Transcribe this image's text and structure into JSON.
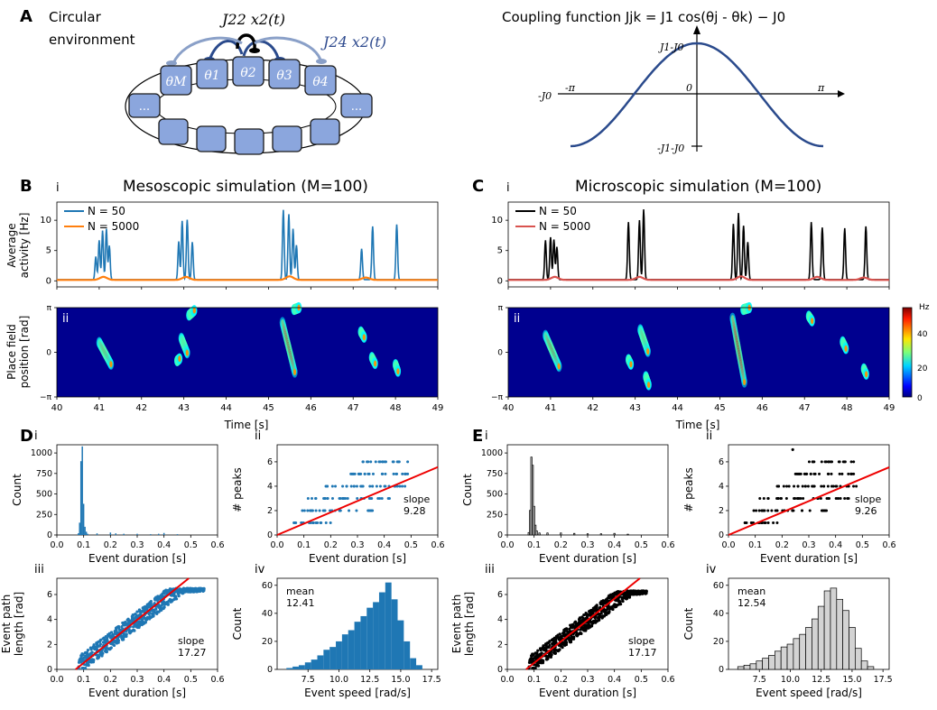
{
  "panel_letters": {
    "A": "A",
    "B": "B",
    "C": "C",
    "D": "D",
    "E": "E"
  },
  "sub_labels": {
    "i": "i",
    "ii": "ii",
    "iii": "iii",
    "iv": "iv"
  },
  "panelA": {
    "env_line1": "Circular",
    "env_line2": "environment",
    "j22_label": "J22 x2(t)",
    "j24_label": "J24 x2(t)",
    "theta_labels": [
      "θM",
      "θ1",
      "θ2",
      "θ3",
      "θ4"
    ],
    "ellipsis": "...",
    "coupling_title": "Coupling function  Jjk = J1 cos(θj - θk) − J0",
    "top_tick": "J1-J0",
    "bottom_tick": "-J1-J0",
    "left_tick": "-J0",
    "neg_pi": "-π",
    "pos_pi": "π",
    "zero": "0",
    "colors": {
      "box": "#8ba6dd",
      "box_border": "#1a1a1a",
      "curve": "#2a4a8c",
      "arrow_light": "#8aa0c8",
      "arrow_dark": "#2a4a8c",
      "j24_text": "#2e4a8e"
    }
  },
  "panelB": {
    "title": "Mesoscopic simulation (M=100)",
    "ylabel_top": [
      "Average",
      "activity [Hz]"
    ],
    "ylabel_bottom": [
      "Place field",
      "position [rad]"
    ],
    "legend": [
      "N = 50",
      "N = 5000"
    ],
    "colors": [
      "#1f77b4",
      "#ff7f0e"
    ],
    "xlabel": "Time [s]",
    "xticks": [
      "40",
      "41",
      "42",
      "43",
      "44",
      "45",
      "46",
      "47",
      "48",
      "49"
    ],
    "yticks_top": [
      "0",
      "5",
      "10"
    ],
    "yticks_bottom": [
      "−π",
      "0",
      "π"
    ]
  },
  "panelC": {
    "title": "Microscopic simulation (M=100)",
    "legend": [
      "N = 50",
      "N = 5000"
    ],
    "colors": [
      "#000000",
      "#d9534f"
    ],
    "xlabel": "Time [s]",
    "colorbar_unit": "Hz",
    "colorbar_ticks": [
      "0",
      "20",
      "40"
    ]
  },
  "chart_data": [
    {
      "type": "line",
      "panel": "B-i",
      "title": "Mesoscopic simulation (M=100)",
      "xlabel": "",
      "ylabel": "Average activity [Hz]",
      "xlim": [
        40,
        49
      ],
      "ylim": [
        -1,
        13
      ],
      "series": [
        {
          "name": "N = 50",
          "peaks": [
            [
              40.92,
              3.8
            ],
            [
              41.0,
              6.5
            ],
            [
              41.08,
              8.1
            ],
            [
              41.17,
              8.4
            ],
            [
              41.24,
              5.6
            ],
            [
              42.88,
              6.3
            ],
            [
              42.96,
              9.7
            ],
            [
              43.08,
              9.9
            ],
            [
              43.2,
              6.2
            ],
            [
              45.35,
              11.5
            ],
            [
              45.48,
              10.8
            ],
            [
              45.58,
              8.4
            ],
            [
              45.66,
              5.7
            ],
            [
              47.2,
              5.1
            ],
            [
              47.46,
              8.8
            ],
            [
              48.03,
              9.1
            ]
          ]
        },
        {
          "name": "N = 5000",
          "peaks": [
            [
              41.1,
              0.5
            ],
            [
              43.05,
              0.5
            ],
            [
              45.5,
              0.6
            ],
            [
              47.3,
              0.4
            ]
          ]
        }
      ]
    },
    {
      "type": "heatmap",
      "panel": "B-ii",
      "xlabel": "Time [s]",
      "ylabel": "Place field position [rad]",
      "xlim": [
        40,
        49
      ],
      "ylim": [
        -3.14,
        3.14
      ],
      "color_range": [
        0,
        55
      ],
      "trajectories": [
        {
          "t0": 41.0,
          "t1": 41.28,
          "p0": 0.7,
          "p1": -0.85
        },
        {
          "t0": 42.84,
          "t1": 42.9,
          "p0": -0.6,
          "p1": -0.45
        },
        {
          "t0": 42.94,
          "t1": 43.08,
          "p0": 1.0,
          "p1": -0.05
        },
        {
          "t0": 43.12,
          "t1": 43.25,
          "p0": 2.6,
          "p1": 2.95
        },
        {
          "t0": 45.33,
          "t1": 45.62,
          "p0": 2.1,
          "p1": -1.4
        },
        {
          "t0": 45.6,
          "t1": 45.72,
          "p0": 3.0,
          "p1": 3.14
        },
        {
          "t0": 47.18,
          "t1": 47.26,
          "p0": 1.45,
          "p1": 1.05
        },
        {
          "t0": 47.44,
          "t1": 47.52,
          "p0": -0.35,
          "p1": -0.8
        },
        {
          "t0": 48.0,
          "t1": 48.06,
          "p0": -0.85,
          "p1": -1.35
        }
      ]
    },
    {
      "type": "line",
      "panel": "C-i",
      "title": "Microscopic simulation (M=100)",
      "xlabel": "",
      "ylabel": "",
      "xlim": [
        40,
        49
      ],
      "ylim": [
        -1,
        13
      ],
      "series": [
        {
          "name": "N = 50",
          "peaks": [
            [
              40.88,
              6.5
            ],
            [
              41.0,
              7.0
            ],
            [
              41.08,
              6.6
            ],
            [
              41.15,
              5.4
            ],
            [
              42.84,
              9.5
            ],
            [
              43.1,
              9.8
            ],
            [
              43.2,
              11.6
            ],
            [
              45.32,
              9.2
            ],
            [
              45.44,
              11.0
            ],
            [
              45.56,
              8.9
            ],
            [
              45.66,
              6.2
            ],
            [
              47.16,
              9.5
            ],
            [
              47.42,
              8.6
            ],
            [
              47.95,
              8.5
            ],
            [
              48.45,
              8.8
            ]
          ]
        },
        {
          "name": "N = 5000",
          "peaks": [
            [
              41.1,
              0.5
            ],
            [
              43.1,
              0.5
            ],
            [
              45.5,
              0.6
            ],
            [
              47.3,
              0.5
            ],
            [
              48.4,
              0.4
            ]
          ]
        }
      ]
    },
    {
      "type": "heatmap",
      "panel": "C-ii",
      "xlabel": "Time [s]",
      "ylabel": "",
      "xlim": [
        40,
        49
      ],
      "ylim": [
        -3.14,
        3.14
      ],
      "color_range": [
        0,
        55
      ],
      "trajectories": [
        {
          "t0": 40.88,
          "t1": 41.2,
          "p0": 1.2,
          "p1": -1.0
        },
        {
          "t0": 42.84,
          "t1": 42.9,
          "p0": -0.5,
          "p1": -0.85
        },
        {
          "t0": 43.12,
          "t1": 43.3,
          "p0": 1.6,
          "p1": 0.05
        },
        {
          "t0": 43.25,
          "t1": 43.32,
          "p0": -1.7,
          "p1": -2.3
        },
        {
          "t0": 45.3,
          "t1": 45.58,
          "p0": 2.4,
          "p1": -2.1
        },
        {
          "t0": 45.55,
          "t1": 45.7,
          "p0": 3.0,
          "p1": 3.14
        },
        {
          "t0": 47.1,
          "t1": 47.18,
          "p0": 2.55,
          "p1": 2.2
        },
        {
          "t0": 47.9,
          "t1": 47.98,
          "p0": 0.75,
          "p1": 0.25
        },
        {
          "t0": 48.4,
          "t1": 48.46,
          "p0": -1.15,
          "p1": -1.55
        }
      ]
    },
    {
      "type": "bar",
      "panel": "D-i",
      "xlabel": "Event duration [s]",
      "ylabel": "Count",
      "xlim": [
        0,
        0.6
      ],
      "ylim": [
        0,
        1100
      ],
      "xticks": [
        0,
        0.1,
        0.2,
        0.3,
        0.4,
        0.5,
        0.6
      ],
      "yticks": [
        0,
        250,
        500,
        750,
        1000
      ],
      "bins": [
        [
          0.08,
          20
        ],
        [
          0.085,
          150
        ],
        [
          0.09,
          900
        ],
        [
          0.095,
          1080
        ],
        [
          0.1,
          380
        ],
        [
          0.105,
          100
        ],
        [
          0.11,
          40
        ],
        [
          0.115,
          15
        ],
        [
          0.15,
          20
        ],
        [
          0.2,
          30
        ],
        [
          0.22,
          20
        ],
        [
          0.25,
          15
        ],
        [
          0.3,
          15
        ],
        [
          0.35,
          10
        ],
        [
          0.38,
          15
        ],
        [
          0.4,
          25
        ],
        [
          0.45,
          10
        ]
      ],
      "color": "#1f77b4"
    },
    {
      "type": "scatter",
      "panel": "D-ii",
      "xlabel": "Event duration [s]",
      "ylabel": "# peaks",
      "xlim": [
        0,
        0.6
      ],
      "ylim": [
        0,
        7.4
      ],
      "xticks": [
        0,
        0.1,
        0.2,
        0.3,
        0.4,
        0.5,
        0.6
      ],
      "yticks": [
        0,
        2,
        4,
        6
      ],
      "rows": [
        [
          1,
          0.05,
          0.22
        ],
        [
          2,
          0.08,
          0.36
        ],
        [
          3,
          0.1,
          0.43
        ],
        [
          4,
          0.18,
          0.48
        ],
        [
          5,
          0.27,
          0.52
        ],
        [
          6,
          0.32,
          0.5
        ]
      ],
      "fit_slope": 9.28,
      "annotation": "slope\n9.28",
      "color": "#1f77b4"
    },
    {
      "type": "scatter",
      "panel": "D-iii",
      "xlabel": "Event duration [s]",
      "ylabel": "Event path length [rad]",
      "xlim": [
        0,
        0.6
      ],
      "ylim": [
        0,
        7.3
      ],
      "xticks": [
        0,
        0.1,
        0.2,
        0.3,
        0.4,
        0.5,
        0.6
      ],
      "yticks": [
        0,
        2,
        4,
        6
      ],
      "cloud": {
        "x0": 0.08,
        "x1": 0.55,
        "y_at_x0": 0.5,
        "y_max": 6.2
      },
      "fit_slope": 17.27,
      "annotation": "slope\n17.27",
      "color": "#1f77b4"
    },
    {
      "type": "bar",
      "panel": "D-iv",
      "xlabel": "Event speed [rad/s]",
      "ylabel": "Count",
      "xlim": [
        5,
        18
      ],
      "ylim": [
        0,
        65
      ],
      "xticks": [
        7.5,
        10.0,
        12.5,
        15.0,
        17.5
      ],
      "yticks": [
        0,
        20,
        40,
        60
      ],
      "bins": [
        [
          6.0,
          1
        ],
        [
          6.5,
          2
        ],
        [
          7.0,
          3
        ],
        [
          7.5,
          5
        ],
        [
          8.0,
          7
        ],
        [
          8.5,
          10
        ],
        [
          9.0,
          14
        ],
        [
          9.5,
          16
        ],
        [
          10.0,
          20
        ],
        [
          10.5,
          25
        ],
        [
          11.0,
          28
        ],
        [
          11.5,
          34
        ],
        [
          12.0,
          38
        ],
        [
          12.5,
          44
        ],
        [
          13.0,
          48
        ],
        [
          13.5,
          55
        ],
        [
          14.0,
          62
        ],
        [
          14.5,
          50
        ],
        [
          15.0,
          35
        ],
        [
          15.5,
          20
        ],
        [
          16.0,
          8
        ],
        [
          16.5,
          3
        ]
      ],
      "mean": 12.41,
      "annotation": "mean\n12.41",
      "color": "#1f77b4"
    },
    {
      "type": "bar",
      "panel": "E-i",
      "xlabel": "Event duration [s]",
      "ylabel": "Count",
      "xlim": [
        0,
        0.6
      ],
      "ylim": [
        0,
        1100
      ],
      "xticks": [
        0,
        0.1,
        0.2,
        0.3,
        0.4,
        0.5,
        0.6
      ],
      "yticks": [
        0,
        250,
        500,
        750,
        1000
      ],
      "bins": [
        [
          0.08,
          30
        ],
        [
          0.085,
          300
        ],
        [
          0.09,
          950
        ],
        [
          0.095,
          850
        ],
        [
          0.1,
          350
        ],
        [
          0.105,
          120
        ],
        [
          0.11,
          50
        ],
        [
          0.12,
          25
        ],
        [
          0.15,
          25
        ],
        [
          0.2,
          25
        ],
        [
          0.25,
          20
        ],
        [
          0.3,
          15
        ],
        [
          0.35,
          15
        ],
        [
          0.4,
          20
        ],
        [
          0.45,
          10
        ]
      ],
      "color": "#d3d3d3",
      "style": "step"
    },
    {
      "type": "scatter",
      "panel": "E-ii",
      "xlabel": "Event duration [s]",
      "ylabel": "# peaks",
      "xlim": [
        0,
        0.6
      ],
      "ylim": [
        0,
        7.4
      ],
      "xticks": [
        0,
        0.1,
        0.2,
        0.3,
        0.4,
        0.5,
        0.6
      ],
      "yticks": [
        0,
        2,
        4,
        6
      ],
      "rows": [
        [
          1,
          0.05,
          0.2
        ],
        [
          2,
          0.08,
          0.37
        ],
        [
          3,
          0.1,
          0.46
        ],
        [
          4,
          0.18,
          0.48
        ],
        [
          5,
          0.25,
          0.5
        ],
        [
          6,
          0.3,
          0.48
        ],
        [
          7,
          0.24,
          0.24
        ]
      ],
      "fit_slope": 9.26,
      "annotation": "slope\n9.26",
      "color": "#000000"
    },
    {
      "type": "scatter",
      "panel": "E-iii",
      "xlabel": "Event duration [s]",
      "ylabel": "Event path length [rad]",
      "xlim": [
        0,
        0.6
      ],
      "ylim": [
        0,
        7.3
      ],
      "xticks": [
        0,
        0.1,
        0.2,
        0.3,
        0.4,
        0.5,
        0.6
      ],
      "yticks": [
        0,
        2,
        4,
        6
      ],
      "cloud": {
        "x0": 0.08,
        "x1": 0.52,
        "y_at_x0": 0.5,
        "y_max": 6.0
      },
      "fit_slope": 17.17,
      "annotation": "slope\n17.17",
      "color": "#000000"
    },
    {
      "type": "bar",
      "panel": "E-iv",
      "xlabel": "Event speed [rad/s]",
      "ylabel": "Count",
      "xlim": [
        5,
        18
      ],
      "ylim": [
        0,
        65
      ],
      "xticks": [
        7.5,
        10.0,
        12.5,
        15.0,
        17.5
      ],
      "yticks": [
        0,
        20,
        40,
        60
      ],
      "bins": [
        [
          6.0,
          2
        ],
        [
          6.5,
          3
        ],
        [
          7.0,
          4
        ],
        [
          7.5,
          6
        ],
        [
          8.0,
          8
        ],
        [
          8.5,
          10
        ],
        [
          9.0,
          13
        ],
        [
          9.5,
          16
        ],
        [
          10.0,
          18
        ],
        [
          10.5,
          22
        ],
        [
          11.0,
          25
        ],
        [
          11.5,
          30
        ],
        [
          12.0,
          36
        ],
        [
          12.5,
          45
        ],
        [
          13.0,
          56
        ],
        [
          13.5,
          58
        ],
        [
          14.0,
          50
        ],
        [
          14.5,
          42
        ],
        [
          15.0,
          30
        ],
        [
          15.5,
          15
        ],
        [
          16.0,
          6
        ],
        [
          16.5,
          2
        ]
      ],
      "mean": 12.54,
      "annotation": "mean\n12.54",
      "color": "#d3d3d3",
      "style": "step"
    }
  ]
}
